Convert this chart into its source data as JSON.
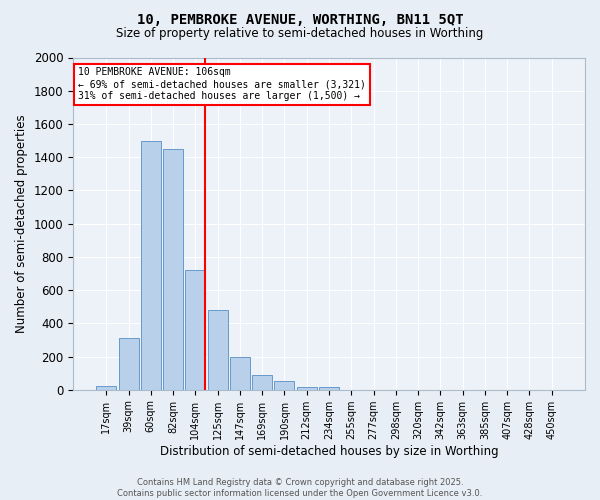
{
  "title1": "10, PEMBROKE AVENUE, WORTHING, BN11 5QT",
  "title2": "Size of property relative to semi-detached houses in Worthing",
  "xlabel": "Distribution of semi-detached houses by size in Worthing",
  "ylabel": "Number of semi-detached properties",
  "bar_labels": [
    "17sqm",
    "39sqm",
    "60sqm",
    "82sqm",
    "104sqm",
    "125sqm",
    "147sqm",
    "169sqm",
    "190sqm",
    "212sqm",
    "234sqm",
    "255sqm",
    "277sqm",
    "298sqm",
    "320sqm",
    "342sqm",
    "363sqm",
    "385sqm",
    "407sqm",
    "428sqm",
    "450sqm"
  ],
  "bar_values": [
    20,
    310,
    1500,
    1450,
    720,
    480,
    200,
    90,
    50,
    15,
    15,
    0,
    0,
    0,
    0,
    0,
    0,
    0,
    0,
    0,
    0
  ],
  "bar_color": "#b8d0ea",
  "bar_edgecolor": "#6699cc",
  "vline_color": "red",
  "vline_pos": 4.43,
  "annotation_title": "10 PEMBROKE AVENUE: 106sqm",
  "annotation_line1": "← 69% of semi-detached houses are smaller (3,321)",
  "annotation_line2": "31% of semi-detached houses are larger (1,500) →",
  "ylim": [
    0,
    2000
  ],
  "footer1": "Contains HM Land Registry data © Crown copyright and database right 2025.",
  "footer2": "Contains public sector information licensed under the Open Government Licence v3.0.",
  "bg_color": "#e8eef5",
  "plot_bg_color": "#edf2f8"
}
